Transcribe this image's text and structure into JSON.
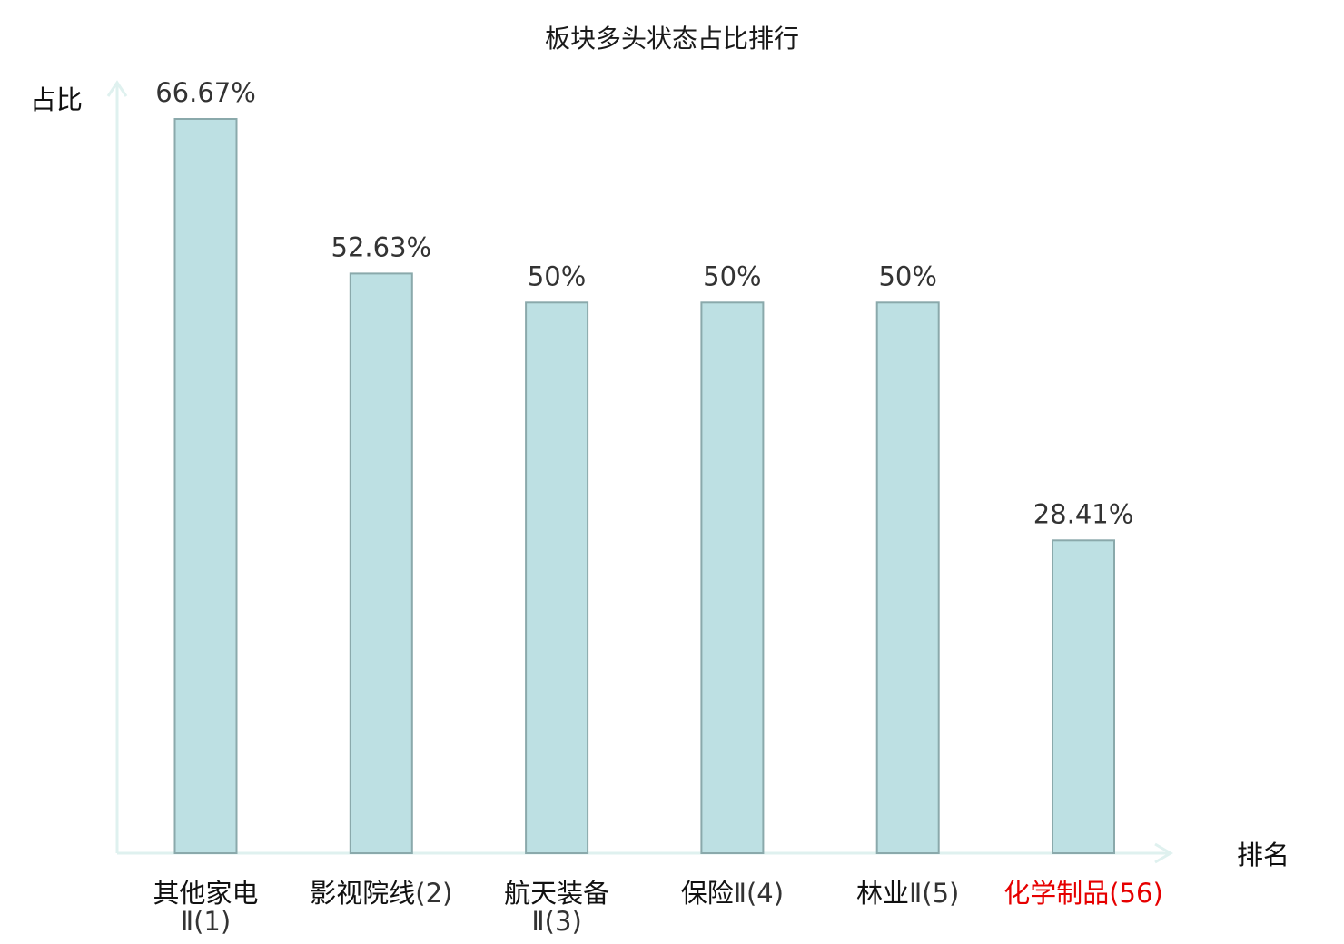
{
  "chart_data": {
    "type": "bar",
    "title": "板块多头状态占比排行",
    "ylabel": "占比",
    "xlabel": "排名",
    "ylim": [
      0,
      70
    ],
    "grid": false,
    "legend": "none",
    "bar_color": "#bde0e3",
    "bar_border_color": "#8aa9ab",
    "axis_color": "#dff1ef",
    "highlight_color": "#e60000",
    "categories": [
      {
        "name": "其他家电",
        "rank": "Ⅱ(1)",
        "highlight": false
      },
      {
        "name": "影视院线",
        "rank": "(2)",
        "highlight": false
      },
      {
        "name": "航天装备",
        "rank": "Ⅱ(3)",
        "highlight": false
      },
      {
        "name": "保险",
        "rank": "Ⅱ(4)",
        "highlight": false
      },
      {
        "name": "林业",
        "rank": "Ⅱ(5)",
        "highlight": false
      },
      {
        "name": "化学制品",
        "rank": "(56)",
        "highlight": true
      }
    ],
    "values": [
      66.67,
      52.63,
      50,
      50,
      50,
      28.41
    ],
    "value_labels": [
      "66.67%",
      "52.63%",
      "50%",
      "50%",
      "50%",
      "28.41%"
    ]
  }
}
